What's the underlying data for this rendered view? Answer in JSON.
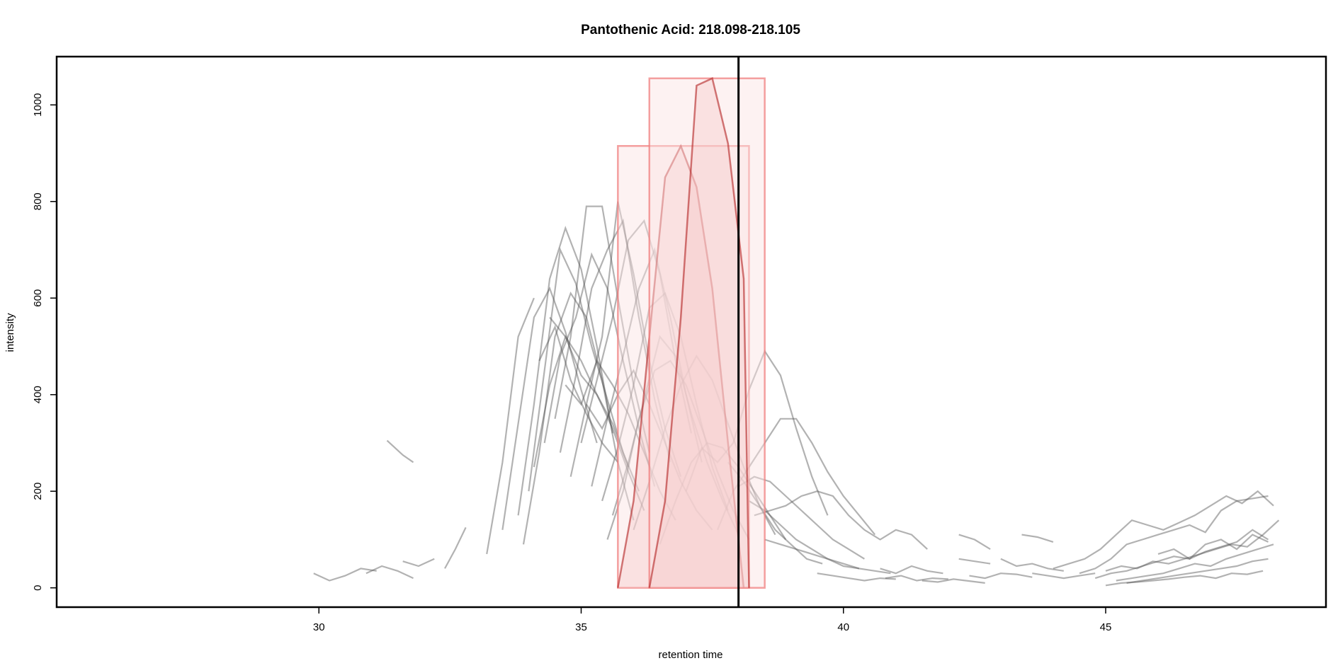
{
  "chart_data": {
    "type": "line",
    "title": "Pantothenic Acid: 218.098-218.105",
    "xlabel": "retention time",
    "ylabel": "intensity",
    "xlim": [
      25.0,
      49.2
    ],
    "ylim": [
      -40,
      1100
    ],
    "xticks": [
      30,
      35,
      40,
      45
    ],
    "yticks": [
      0,
      200,
      400,
      600,
      800,
      1000
    ],
    "grid": false,
    "legend": "none",
    "colors": {
      "trace": "#555555",
      "peak_line": "#b22222",
      "peak_fill": "#f4c2c2",
      "peak_box": "#f08080",
      "marker": "#000000"
    },
    "marker_line_x": 38.0,
    "highlighted_peaks": [
      {
        "x": [
          35.7,
          36.0,
          36.3,
          36.6,
          36.9,
          37.2,
          37.5,
          37.8,
          38.1
        ],
        "y": [
          0,
          180,
          520,
          850,
          915,
          830,
          620,
          300,
          0
        ],
        "box": {
          "xmin": 35.7,
          "xmax": 38.2,
          "ymin": 0,
          "ymax": 915
        }
      },
      {
        "x": [
          36.3,
          36.6,
          36.9,
          37.2,
          37.5,
          37.8,
          38.1,
          38.2
        ],
        "y": [
          0,
          180,
          560,
          1040,
          1055,
          920,
          640,
          0
        ],
        "box": {
          "xmin": 36.3,
          "xmax": 38.5,
          "ymin": 0,
          "ymax": 1055
        }
      }
    ],
    "series": [
      {
        "x": [
          30.9,
          31.2,
          31.5,
          31.8
        ],
        "y": [
          30,
          45,
          35,
          20
        ]
      },
      {
        "x": [
          31.3,
          31.6,
          31.8
        ],
        "y": [
          305,
          275,
          260
        ]
      },
      {
        "x": [
          29.9,
          30.2,
          30.5,
          30.8,
          31.1
        ],
        "y": [
          30,
          15,
          25,
          40,
          35
        ]
      },
      {
        "x": [
          31.6,
          31.9,
          32.2
        ],
        "y": [
          55,
          45,
          60
        ]
      },
      {
        "x": [
          32.4,
          32.6,
          32.8
        ],
        "y": [
          40,
          80,
          125
        ]
      },
      {
        "x": [
          33.2,
          33.5,
          33.8,
          34.1
        ],
        "y": [
          70,
          260,
          520,
          600
        ]
      },
      {
        "x": [
          33.5,
          33.8,
          34.1,
          34.4,
          34.7,
          35.0,
          35.3
        ],
        "y": [
          120,
          340,
          560,
          620,
          530,
          410,
          300
        ]
      },
      {
        "x": [
          33.8,
          34.1,
          34.4,
          34.7,
          35.0,
          35.3,
          35.6
        ],
        "y": [
          150,
          380,
          640,
          745,
          660,
          500,
          320
        ]
      },
      {
        "x": [
          33.9,
          34.2,
          34.5,
          34.8,
          35.1,
          35.4,
          35.7,
          36.0
        ],
        "y": [
          90,
          280,
          520,
          610,
          560,
          430,
          260,
          140
        ]
      },
      {
        "x": [
          34.0,
          34.3,
          34.6,
          34.9,
          35.2,
          35.5,
          35.8,
          36.1
        ],
        "y": [
          200,
          450,
          700,
          630,
          500,
          390,
          280,
          200
        ]
      },
      {
        "x": [
          34.1,
          34.4,
          34.7,
          35.0,
          35.3,
          35.6,
          35.9
        ],
        "y": [
          250,
          420,
          520,
          470,
          400,
          340,
          250
        ]
      },
      {
        "x": [
          34.3,
          34.6,
          34.9,
          35.2,
          35.5,
          35.8,
          36.1,
          36.4
        ],
        "y": [
          300,
          480,
          560,
          690,
          620,
          470,
          330,
          210
        ]
      },
      {
        "x": [
          34.5,
          34.8,
          35.1,
          35.4,
          35.7,
          36.0,
          36.3
        ],
        "y": [
          350,
          520,
          790,
          790,
          600,
          420,
          280
        ]
      },
      {
        "x": [
          34.6,
          34.9,
          35.2,
          35.5,
          35.8,
          36.1,
          36.4,
          36.7
        ],
        "y": [
          280,
          440,
          620,
          700,
          760,
          560,
          390,
          260
        ]
      },
      {
        "x": [
          34.8,
          35.1,
          35.4,
          35.7,
          36.0,
          36.3,
          36.6,
          36.9
        ],
        "y": [
          230,
          380,
          520,
          800,
          650,
          470,
          330,
          230
        ]
      },
      {
        "x": [
          35.0,
          35.3,
          35.6,
          35.9,
          36.2,
          36.5,
          36.8,
          37.1
        ],
        "y": [
          300,
          430,
          560,
          720,
          760,
          650,
          470,
          320
        ]
      },
      {
        "x": [
          35.2,
          35.5,
          35.8,
          36.1,
          36.4,
          36.7,
          37.0,
          37.3
        ],
        "y": [
          210,
          350,
          480,
          620,
          700,
          560,
          400,
          260
        ]
      },
      {
        "x": [
          35.4,
          35.7,
          36.0,
          36.3,
          36.6,
          36.9,
          37.2,
          37.5,
          37.8
        ],
        "y": [
          180,
          290,
          420,
          580,
          610,
          520,
          380,
          250,
          160
        ]
      },
      {
        "x": [
          35.6,
          35.9,
          36.2,
          36.5,
          36.8,
          37.1,
          37.4,
          37.7,
          38.0
        ],
        "y": [
          150,
          260,
          390,
          520,
          480,
          360,
          260,
          180,
          110
        ]
      },
      {
        "x": [
          34.2,
          34.5,
          34.8,
          35.1,
          35.4,
          35.7
        ],
        "y": [
          470,
          540,
          430,
          360,
          300,
          260
        ]
      },
      {
        "x": [
          34.4,
          34.7,
          35.0,
          35.3,
          35.6,
          35.9,
          36.2
        ],
        "y": [
          560,
          520,
          440,
          400,
          330,
          240,
          160
        ]
      },
      {
        "x": [
          34.7,
          35.0,
          35.3,
          35.6,
          35.9,
          36.2,
          36.5,
          36.8
        ],
        "y": [
          420,
          380,
          470,
          420,
          360,
          280,
          200,
          140
        ]
      },
      {
        "x": [
          35.1,
          35.4,
          35.7,
          36.0,
          36.3,
          36.6,
          36.9,
          37.2,
          37.5
        ],
        "y": [
          380,
          330,
          400,
          450,
          380,
          300,
          220,
          160,
          120
        ]
      },
      {
        "x": [
          35.5,
          35.8,
          36.1,
          36.4,
          36.7,
          37.0,
          37.3,
          37.6,
          37.9,
          38.2
        ],
        "y": [
          100,
          200,
          350,
          450,
          470,
          420,
          330,
          240,
          160,
          100
        ]
      },
      {
        "x": [
          36.0,
          36.3,
          36.6,
          36.9,
          37.2,
          37.5,
          37.8,
          38.1,
          38.4,
          38.7
        ],
        "y": [
          120,
          220,
          330,
          420,
          480,
          430,
          340,
          250,
          170,
          110
        ]
      },
      {
        "x": [
          36.5,
          36.8,
          37.1,
          37.4,
          37.7,
          38.0,
          38.3,
          38.6,
          38.9
        ],
        "y": [
          90,
          180,
          260,
          300,
          290,
          250,
          200,
          150,
          100
        ]
      },
      {
        "x": [
          37.0,
          37.3,
          37.6,
          37.9,
          38.2,
          38.5,
          38.8,
          39.1,
          39.4,
          39.7
        ],
        "y": [
          200,
          290,
          260,
          300,
          410,
          490,
          440,
          330,
          230,
          150
        ]
      },
      {
        "x": [
          37.6,
          37.9,
          38.2,
          38.5,
          38.8,
          39.1,
          39.4,
          39.7,
          40.0,
          40.3,
          40.6
        ],
        "y": [
          120,
          200,
          250,
          300,
          350,
          350,
          300,
          240,
          190,
          150,
          110
        ]
      },
      {
        "x": [
          38.0,
          38.3,
          38.6,
          38.9,
          39.2,
          39.5,
          39.8,
          40.1,
          40.4
        ],
        "y": [
          210,
          230,
          220,
          190,
          160,
          130,
          100,
          80,
          60
        ]
      },
      {
        "x": [
          38.3,
          38.6,
          38.9,
          39.2,
          39.5,
          39.8,
          40.1,
          40.4,
          40.7,
          41.0,
          41.3,
          41.6
        ],
        "y": [
          150,
          160,
          170,
          190,
          200,
          190,
          150,
          120,
          100,
          120,
          110,
          80
        ]
      },
      {
        "x": [
          38.2,
          38.5,
          38.8,
          39.1,
          39.4,
          39.7,
          40.0,
          40.3,
          40.6,
          40.9
        ],
        "y": [
          180,
          160,
          130,
          100,
          80,
          60,
          50,
          40,
          35,
          30
        ]
      },
      {
        "x": [
          37.8,
          38.1,
          38.4,
          38.7,
          39.0,
          39.3,
          39.6
        ],
        "y": [
          260,
          220,
          170,
          120,
          90,
          60,
          50
        ]
      },
      {
        "x": [
          38.5,
          38.8,
          39.1,
          39.4,
          39.7,
          40.0,
          40.3
        ],
        "y": [
          100,
          90,
          80,
          70,
          60,
          45,
          40
        ]
      },
      {
        "x": [
          40.7,
          41.0,
          41.3,
          41.6,
          41.9
        ],
        "y": [
          40,
          30,
          45,
          35,
          30
        ]
      },
      {
        "x": [
          40.8,
          41.1,
          41.4,
          41.7,
          42.0
        ],
        "y": [
          20,
          25,
          15,
          20,
          18
        ]
      },
      {
        "x": [
          42.2,
          42.5,
          42.8
        ],
        "y": [
          110,
          100,
          80
        ]
      },
      {
        "x": [
          42.2,
          42.5,
          42.8
        ],
        "y": [
          60,
          55,
          50
        ]
      },
      {
        "x": [
          43.0,
          43.3,
          43.6,
          43.9,
          44.2
        ],
        "y": [
          60,
          45,
          50,
          40,
          35
        ]
      },
      {
        "x": [
          42.4,
          42.7,
          43.0,
          43.3,
          43.6
        ],
        "y": [
          25,
          20,
          30,
          28,
          22
        ]
      },
      {
        "x": [
          43.4,
          43.7,
          44.0
        ],
        "y": [
          110,
          105,
          95
        ]
      },
      {
        "x": [
          43.6,
          43.9,
          44.2,
          44.5,
          44.8
        ],
        "y": [
          30,
          25,
          20,
          25,
          30
        ]
      },
      {
        "x": [
          44.0,
          44.3,
          44.6,
          44.9,
          45.2,
          45.5,
          45.8,
          46.1,
          46.4,
          46.7,
          47.0,
          47.3,
          47.6,
          47.9,
          48.2
        ],
        "y": [
          40,
          50,
          60,
          80,
          110,
          140,
          130,
          120,
          135,
          150,
          170,
          190,
          175,
          200,
          170
        ]
      },
      {
        "x": [
          44.5,
          44.8,
          45.1,
          45.4,
          45.7,
          46.0,
          46.3,
          46.6,
          46.9,
          47.2,
          47.5,
          47.8,
          48.1
        ],
        "y": [
          30,
          40,
          60,
          90,
          100,
          110,
          120,
          130,
          115,
          160,
          180,
          185,
          190
        ]
      },
      {
        "x": [
          45.0,
          45.3,
          45.6,
          45.9,
          46.2,
          46.5,
          46.8,
          47.1,
          47.4,
          47.7,
          48.0,
          48.3
        ],
        "y": [
          35,
          45,
          40,
          55,
          50,
          60,
          70,
          80,
          90,
          85,
          110,
          140
        ]
      },
      {
        "x": [
          44.8,
          45.1,
          45.4,
          45.7,
          46.0,
          46.3,
          46.6,
          46.9,
          47.2,
          47.5,
          47.8,
          48.1
        ],
        "y": [
          20,
          30,
          35,
          45,
          55,
          65,
          60,
          75,
          85,
          95,
          120,
          100
        ]
      },
      {
        "x": [
          45.2,
          45.5,
          45.8,
          46.1,
          46.4,
          46.7,
          47.0,
          47.3,
          47.6,
          47.9,
          48.2
        ],
        "y": [
          15,
          20,
          25,
          30,
          40,
          50,
          45,
          60,
          70,
          80,
          90
        ]
      },
      {
        "x": [
          45.4,
          45.7,
          46.0,
          46.3,
          46.6,
          46.9,
          47.2,
          47.5,
          47.8,
          48.1
        ],
        "y": [
          10,
          15,
          20,
          25,
          30,
          35,
          40,
          45,
          55,
          60
        ]
      },
      {
        "x": [
          45.0,
          45.3,
          45.6,
          45.9,
          46.2,
          46.5,
          46.8,
          47.1,
          47.4,
          47.7,
          48.0
        ],
        "y": [
          5,
          10,
          12,
          15,
          18,
          22,
          25,
          20,
          30,
          28,
          35
        ]
      },
      {
        "x": [
          46.0,
          46.3,
          46.6,
          46.9,
          47.2,
          47.5,
          47.8,
          48.1
        ],
        "y": [
          70,
          80,
          60,
          90,
          100,
          80,
          110,
          95
        ]
      },
      {
        "x": [
          39.5,
          39.8,
          40.1,
          40.4,
          40.7,
          41.0
        ],
        "y": [
          30,
          25,
          20,
          15,
          20,
          18
        ]
      },
      {
        "x": [
          41.5,
          41.8,
          42.1,
          42.4,
          42.7
        ],
        "y": [
          15,
          12,
          18,
          14,
          10
        ]
      }
    ]
  }
}
